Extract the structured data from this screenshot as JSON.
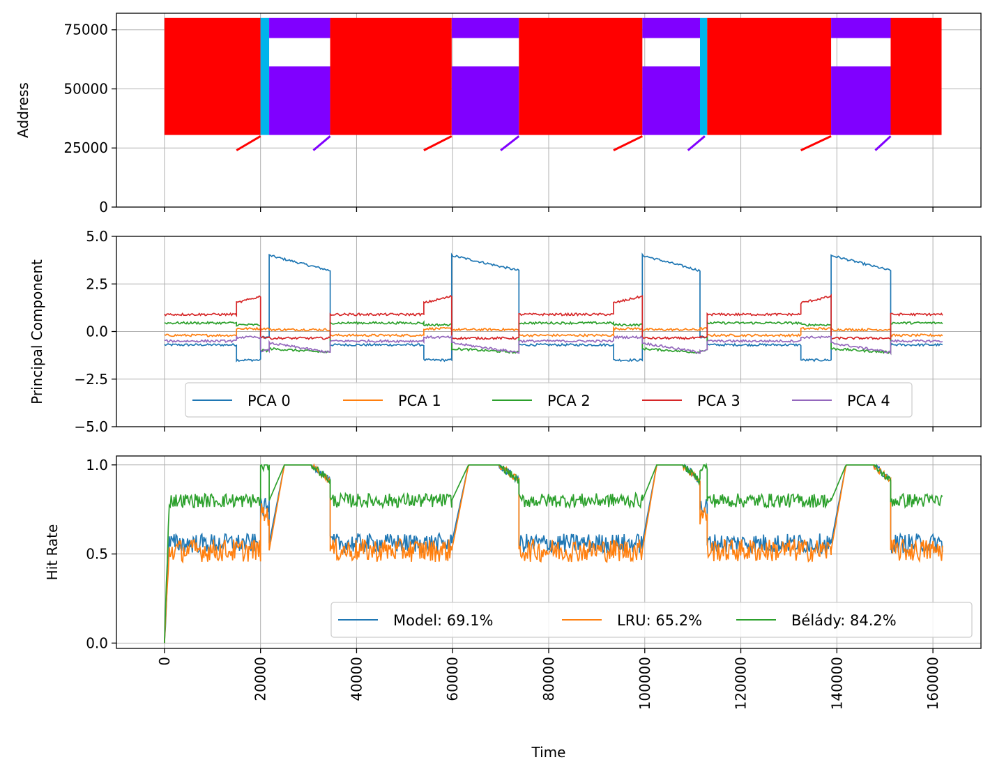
{
  "chart_data": [
    {
      "type": "scatter",
      "title": "",
      "xlabel": "",
      "ylabel": "Address",
      "xlim": [
        -10000,
        170000
      ],
      "ylim": [
        0,
        82000
      ],
      "yticks": [
        0,
        25000,
        50000,
        75000
      ],
      "grid": true,
      "legend": "none",
      "colors": {
        "red": "#ff0000",
        "purple": "#8000ff",
        "cyan": "#00b4eb"
      },
      "segments": [
        {
          "color": "red",
          "x": [
            0,
            20000
          ],
          "ymin": 30500,
          "ymax": 80000
        },
        {
          "color": "cyan",
          "x": [
            20000,
            21800
          ],
          "ymin": 30500,
          "ymax": 80000
        },
        {
          "color": "purple",
          "x": [
            21800,
            34500
          ],
          "ymin": 30500,
          "ymax": 80000,
          "hole": [
            59500,
            71500
          ]
        },
        {
          "color": "red",
          "x": [
            34500,
            59800
          ],
          "ymin": 30500,
          "ymax": 80000
        },
        {
          "color": "purple",
          "x": [
            59800,
            73800
          ],
          "ymin": 30500,
          "ymax": 80000,
          "hole": [
            59500,
            71500
          ]
        },
        {
          "color": "red",
          "x": [
            73800,
            99500
          ],
          "ymin": 30500,
          "ymax": 80000
        },
        {
          "color": "purple",
          "x": [
            99500,
            111500
          ],
          "ymin": 30500,
          "ymax": 80000,
          "hole": [
            59500,
            71500
          ]
        },
        {
          "color": "cyan",
          "x": [
            111500,
            113000
          ],
          "ymin": 30500,
          "ymax": 80000
        },
        {
          "color": "red",
          "x": [
            113000,
            138800
          ],
          "ymin": 30500,
          "ymax": 80000
        },
        {
          "color": "purple",
          "x": [
            138800,
            151200
          ],
          "ymin": 30500,
          "ymax": 80000,
          "hole": [
            59500,
            71500
          ]
        },
        {
          "color": "red",
          "x": [
            151200,
            161800
          ],
          "ymin": 30500,
          "ymax": 80000
        }
      ],
      "ramps": [
        {
          "color": "red",
          "x": [
            15000,
            20000
          ],
          "y": [
            24000,
            30000
          ]
        },
        {
          "color": "purple",
          "x": [
            31000,
            34500
          ],
          "y": [
            24000,
            30000
          ]
        },
        {
          "color": "red",
          "x": [
            54000,
            59800
          ],
          "y": [
            24000,
            30000
          ]
        },
        {
          "color": "purple",
          "x": [
            70000,
            73800
          ],
          "y": [
            24000,
            30000
          ]
        },
        {
          "color": "red",
          "x": [
            93500,
            99500
          ],
          "y": [
            24000,
            30000
          ]
        },
        {
          "color": "purple",
          "x": [
            109000,
            112500
          ],
          "y": [
            24000,
            30000
          ]
        },
        {
          "color": "red",
          "x": [
            132500,
            138800
          ],
          "y": [
            24000,
            30000
          ]
        },
        {
          "color": "purple",
          "x": [
            148000,
            151200
          ],
          "y": [
            24000,
            30000
          ]
        }
      ]
    },
    {
      "type": "line",
      "title": "",
      "xlabel": "",
      "ylabel": "Principal Component",
      "xlim": [
        -10000,
        170000
      ],
      "ylim": [
        -5,
        5
      ],
      "yticks": [
        -5.0,
        -2.5,
        0.0,
        2.5,
        5.0
      ],
      "ytick_labels": [
        "−5.0",
        "−2.5",
        "0.0",
        "2.5",
        "5.0"
      ],
      "grid": true,
      "legend": "lower-center",
      "phases": [
        {
          "type": "A",
          "x": [
            0,
            15000
          ]
        },
        {
          "type": "B",
          "x": [
            15000,
            20000
          ]
        },
        {
          "type": "C",
          "x": [
            20000,
            21800
          ]
        },
        {
          "type": "D",
          "x": [
            21800,
            34500
          ]
        },
        {
          "type": "A",
          "x": [
            34500,
            54000
          ]
        },
        {
          "type": "B",
          "x": [
            54000,
            59800
          ]
        },
        {
          "type": "D",
          "x": [
            59800,
            73800
          ]
        },
        {
          "type": "A",
          "x": [
            73800,
            93500
          ]
        },
        {
          "type": "B",
          "x": [
            93500,
            99500
          ]
        },
        {
          "type": "D",
          "x": [
            99500,
            111500
          ]
        },
        {
          "type": "C",
          "x": [
            111500,
            113000
          ]
        },
        {
          "type": "A",
          "x": [
            113000,
            132500
          ]
        },
        {
          "type": "B",
          "x": [
            132500,
            138800
          ]
        },
        {
          "type": "D",
          "x": [
            138800,
            151200
          ]
        },
        {
          "type": "A",
          "x": [
            151200,
            162000
          ]
        }
      ],
      "series": [
        {
          "name": "PCA 0",
          "color": "#1f77b4",
          "levels": {
            "A": -0.7,
            "B": -1.5,
            "C": -0.3,
            "D": [
              4.0,
              3.2
            ]
          }
        },
        {
          "name": "PCA 1",
          "color": "#ff7f0e",
          "levels": {
            "A": -0.2,
            "B": 0.15,
            "C": 0.15,
            "D": 0.1
          }
        },
        {
          "name": "PCA 2",
          "color": "#2ca02c",
          "levels": {
            "A": 0.45,
            "B": 0.35,
            "C": -1.0,
            "D": [
              -0.9,
              -1.1
            ]
          }
        },
        {
          "name": "PCA 3",
          "color": "#d62728",
          "levels": {
            "A": 0.9,
            "B": [
              1.5,
              1.85
            ],
            "C": -0.3,
            "D": -0.35
          }
        },
        {
          "name": "PCA 4",
          "color": "#9467bd",
          "levels": {
            "A": -0.5,
            "B": -0.3,
            "C": -1.0,
            "D": [
              -0.6,
              -1.1
            ]
          }
        }
      ]
    },
    {
      "type": "line",
      "title": "",
      "xlabel": "Time",
      "ylabel": "Hit Rate",
      "xlim": [
        -10000,
        170000
      ],
      "ylim": [
        -0.03,
        1.05
      ],
      "yticks": [
        0.0,
        0.5,
        1.0
      ],
      "ytick_labels": [
        "0.0",
        "0.5",
        "1.0"
      ],
      "xticks": [
        0,
        20000,
        40000,
        60000,
        80000,
        100000,
        120000,
        140000,
        160000
      ],
      "xtick_labels": [
        "0",
        "20000",
        "40000",
        "60000",
        "80000",
        "100000",
        "120000",
        "140000",
        "160000"
      ],
      "grid": true,
      "legend": "lower-right",
      "series": [
        {
          "name": "Model: 69.1%",
          "color": "#1f77b4",
          "levels": {
            "A": 0.56,
            "D": 1.0
          }
        },
        {
          "name": "LRU: 65.2%",
          "color": "#ff7f0e",
          "levels": {
            "A": 0.52,
            "D": 1.0
          }
        },
        {
          "name": "Bélády: 84.2%",
          "color": "#2ca02c",
          "levels": {
            "A": 0.8,
            "D": 1.0
          }
        }
      ]
    }
  ]
}
